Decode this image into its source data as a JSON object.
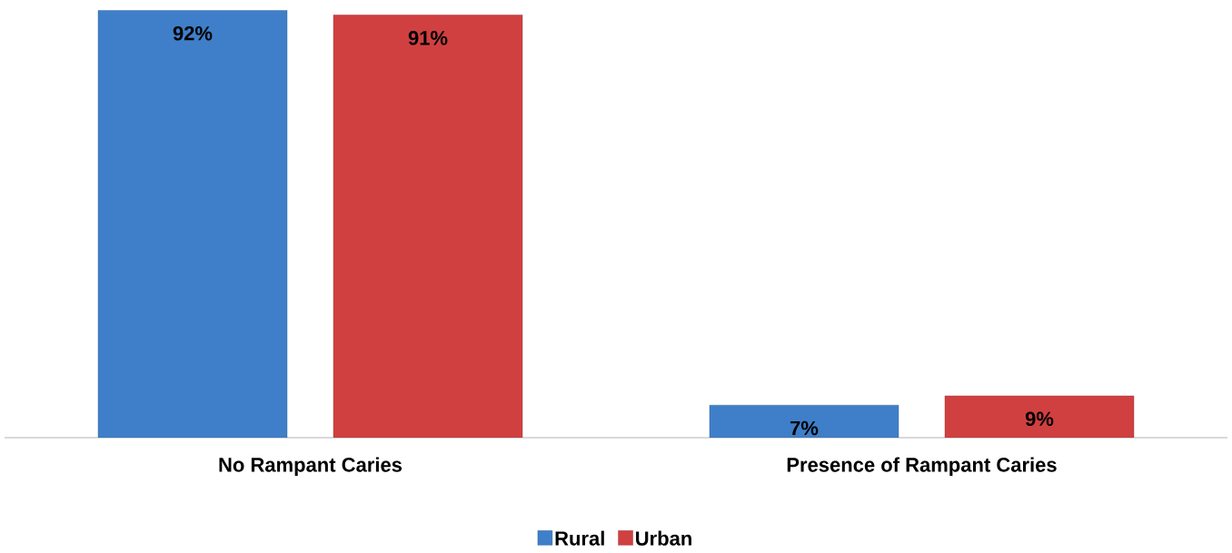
{
  "chart_data": {
    "type": "bar",
    "categories": [
      "No Rampant Caries",
      "Presence of Rampant Caries"
    ],
    "series": [
      {
        "name": "Rural",
        "color": "#3f7fc9",
        "values": [
          92,
          7
        ],
        "value_labels": [
          "92%",
          "7%"
        ]
      },
      {
        "name": "Urban",
        "color": "#d04040",
        "values": [
          91,
          9
        ],
        "value_labels": [
          "91%",
          "9%"
        ]
      }
    ],
    "legend": "bottom"
  }
}
